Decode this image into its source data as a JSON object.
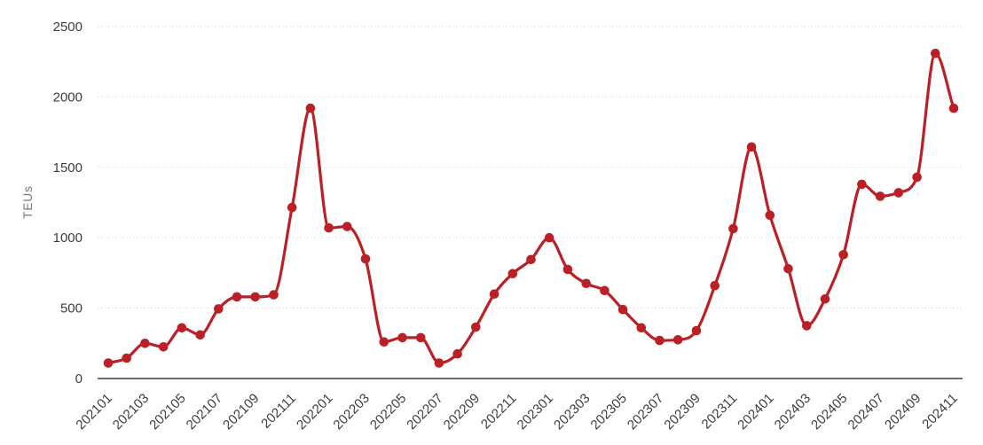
{
  "chart_data": {
    "type": "line",
    "title": "",
    "xlabel": "",
    "ylabel": "TEUs",
    "ylim": [
      0,
      2500
    ],
    "y_ticks": [
      0,
      500,
      1000,
      1500,
      2000,
      2500
    ],
    "grid": "horizontal-dotted",
    "legend": null,
    "x": [
      "202101",
      "202102",
      "202103",
      "202104",
      "202105",
      "202106",
      "202107",
      "202108",
      "202109",
      "202110",
      "202111",
      "202112",
      "202201",
      "202202",
      "202203",
      "202204",
      "202205",
      "202206",
      "202207",
      "202208",
      "202209",
      "202210",
      "202211",
      "202212",
      "202301",
      "202302",
      "202303",
      "202304",
      "202305",
      "202306",
      "202307",
      "202308",
      "202309",
      "202310",
      "202311",
      "202312",
      "202401",
      "202402",
      "202403",
      "202404",
      "202405",
      "202406",
      "202407",
      "202408",
      "202409",
      "202410",
      "202411"
    ],
    "values": [
      110,
      145,
      250,
      225,
      360,
      310,
      495,
      580,
      580,
      595,
      1215,
      1920,
      1070,
      1080,
      850,
      260,
      290,
      290,
      110,
      175,
      365,
      600,
      745,
      845,
      1000,
      775,
      675,
      625,
      490,
      360,
      270,
      275,
      340,
      660,
      1065,
      1645,
      1160,
      780,
      375,
      565,
      880,
      1380,
      1295,
      1320,
      1430,
      2310,
      1920
    ],
    "x_tick_labels": [
      "202101",
      "202103",
      "202105",
      "202107",
      "202109",
      "202111",
      "202201",
      "202203",
      "202205",
      "202207",
      "202209",
      "202211",
      "202301",
      "202303",
      "202305",
      "202307",
      "202309",
      "202311",
      "202401",
      "202403",
      "202405",
      "202407",
      "202409",
      "202411"
    ],
    "colors": {
      "line": "#bb2026",
      "marker": "#bb2026",
      "gridline": "#dcdcdc",
      "axis_line": "#6e6e6e",
      "tick_label": "#3d3d3d",
      "axis_title": "#757575",
      "background": "#ffffff"
    }
  }
}
